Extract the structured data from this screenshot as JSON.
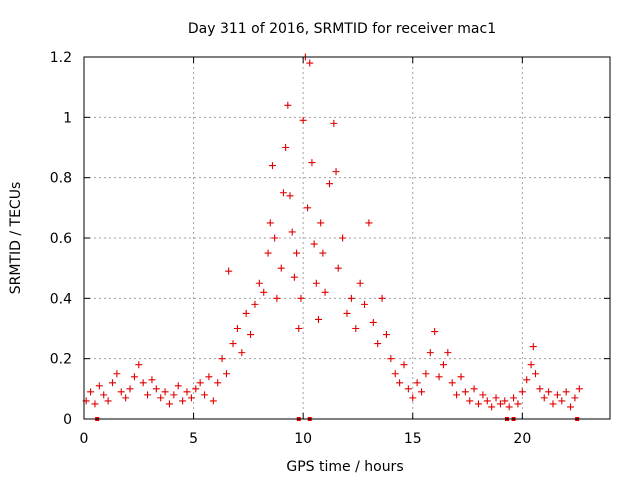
{
  "chart_data": {
    "type": "scatter",
    "title": "Day 311 of 2016, SRMTID for receiver mac1",
    "xlabel": "GPS time / hours",
    "ylabel": "SRMTID / TECUs",
    "xlim": [
      0,
      24
    ],
    "ylim": [
      0,
      1.2
    ],
    "x_ticks": [
      {
        "value": 0,
        "label": "0"
      },
      {
        "value": 5,
        "label": "5"
      },
      {
        "value": 10,
        "label": "10"
      },
      {
        "value": 15,
        "label": "15"
      },
      {
        "value": 20,
        "label": "20"
      }
    ],
    "y_ticks": [
      {
        "value": 0,
        "label": "0"
      },
      {
        "value": 0.2,
        "label": "0.2"
      },
      {
        "value": 0.4,
        "label": "0.4"
      },
      {
        "value": 0.6,
        "label": "0.6"
      },
      {
        "value": 0.8,
        "label": "0.8"
      },
      {
        "value": 1.0,
        "label": "1"
      },
      {
        "value": 1.2,
        "label": "1.2"
      }
    ],
    "grid": true,
    "marker": "+",
    "series_color": "#e00000",
    "series": [
      {
        "name": "SRMTID",
        "points": [
          [
            0.1,
            0.06
          ],
          [
            0.3,
            0.09
          ],
          [
            0.5,
            0.05
          ],
          [
            0.7,
            0.11
          ],
          [
            0.9,
            0.08
          ],
          [
            1.1,
            0.06
          ],
          [
            1.3,
            0.12
          ],
          [
            1.5,
            0.15
          ],
          [
            1.7,
            0.09
          ],
          [
            1.9,
            0.07
          ],
          [
            2.1,
            0.1
          ],
          [
            2.3,
            0.14
          ],
          [
            2.5,
            0.18
          ],
          [
            2.7,
            0.12
          ],
          [
            2.9,
            0.08
          ],
          [
            3.1,
            0.13
          ],
          [
            3.3,
            0.1
          ],
          [
            3.5,
            0.07
          ],
          [
            3.7,
            0.09
          ],
          [
            3.9,
            0.05
          ],
          [
            4.1,
            0.08
          ],
          [
            4.3,
            0.11
          ],
          [
            4.5,
            0.06
          ],
          [
            4.7,
            0.09
          ],
          [
            4.9,
            0.07
          ],
          [
            5.1,
            0.1
          ],
          [
            5.3,
            0.12
          ],
          [
            5.5,
            0.08
          ],
          [
            5.7,
            0.14
          ],
          [
            5.9,
            0.06
          ],
          [
            6.1,
            0.12
          ],
          [
            6.3,
            0.2
          ],
          [
            6.5,
            0.15
          ],
          [
            6.6,
            0.49
          ],
          [
            6.8,
            0.25
          ],
          [
            7.0,
            0.3
          ],
          [
            7.2,
            0.22
          ],
          [
            7.4,
            0.35
          ],
          [
            7.6,
            0.28
          ],
          [
            7.8,
            0.38
          ],
          [
            8.0,
            0.45
          ],
          [
            8.2,
            0.42
          ],
          [
            8.4,
            0.55
          ],
          [
            8.5,
            0.65
          ],
          [
            8.6,
            0.84
          ],
          [
            8.7,
            0.6
          ],
          [
            8.8,
            0.4
          ],
          [
            9.0,
            0.5
          ],
          [
            9.1,
            0.75
          ],
          [
            9.2,
            0.9
          ],
          [
            9.3,
            1.04
          ],
          [
            9.4,
            0.74
          ],
          [
            9.5,
            0.62
          ],
          [
            9.6,
            0.47
          ],
          [
            9.7,
            0.55
          ],
          [
            9.8,
            0.3
          ],
          [
            9.9,
            0.4
          ],
          [
            10.0,
            0.99
          ],
          [
            10.1,
            1.2
          ],
          [
            10.2,
            0.7
          ],
          [
            10.3,
            1.18
          ],
          [
            10.4,
            0.85
          ],
          [
            10.5,
            0.58
          ],
          [
            10.6,
            0.45
          ],
          [
            10.7,
            0.33
          ],
          [
            10.8,
            0.65
          ],
          [
            10.9,
            0.55
          ],
          [
            11.0,
            0.42
          ],
          [
            11.2,
            0.78
          ],
          [
            11.4,
            0.98
          ],
          [
            11.5,
            0.82
          ],
          [
            11.6,
            0.5
          ],
          [
            11.8,
            0.6
          ],
          [
            12.0,
            0.35
          ],
          [
            12.2,
            0.4
          ],
          [
            12.4,
            0.3
          ],
          [
            12.6,
            0.45
          ],
          [
            12.8,
            0.38
          ],
          [
            13.0,
            0.65
          ],
          [
            13.2,
            0.32
          ],
          [
            13.4,
            0.25
          ],
          [
            13.6,
            0.4
          ],
          [
            13.8,
            0.28
          ],
          [
            14.0,
            0.2
          ],
          [
            14.2,
            0.15
          ],
          [
            14.4,
            0.12
          ],
          [
            14.6,
            0.18
          ],
          [
            14.8,
            0.1
          ],
          [
            15.0,
            0.07
          ],
          [
            15.2,
            0.12
          ],
          [
            15.4,
            0.09
          ],
          [
            15.6,
            0.15
          ],
          [
            15.8,
            0.22
          ],
          [
            16.0,
            0.29
          ],
          [
            16.2,
            0.14
          ],
          [
            16.4,
            0.18
          ],
          [
            16.6,
            0.22
          ],
          [
            16.8,
            0.12
          ],
          [
            17.0,
            0.08
          ],
          [
            17.2,
            0.14
          ],
          [
            17.4,
            0.09
          ],
          [
            17.6,
            0.06
          ],
          [
            17.8,
            0.1
          ],
          [
            18.0,
            0.05
          ],
          [
            18.2,
            0.08
          ],
          [
            18.4,
            0.06
          ],
          [
            18.6,
            0.04
          ],
          [
            18.8,
            0.07
          ],
          [
            19.0,
            0.05
          ],
          [
            19.2,
            0.06
          ],
          [
            19.4,
            0.04
          ],
          [
            19.6,
            0.07
          ],
          [
            19.8,
            0.05
          ],
          [
            20.0,
            0.09
          ],
          [
            20.2,
            0.13
          ],
          [
            20.4,
            0.18
          ],
          [
            20.5,
            0.24
          ],
          [
            20.6,
            0.15
          ],
          [
            20.8,
            0.1
          ],
          [
            21.0,
            0.07
          ],
          [
            21.2,
            0.09
          ],
          [
            21.4,
            0.05
          ],
          [
            21.6,
            0.08
          ],
          [
            21.8,
            0.06
          ],
          [
            22.0,
            0.09
          ],
          [
            22.2,
            0.04
          ],
          [
            22.4,
            0.07
          ],
          [
            22.6,
            0.1
          ]
        ]
      }
    ],
    "baseline_markers_x": [
      0.6,
      9.8,
      10.3,
      19.3,
      19.6,
      22.5
    ]
  }
}
